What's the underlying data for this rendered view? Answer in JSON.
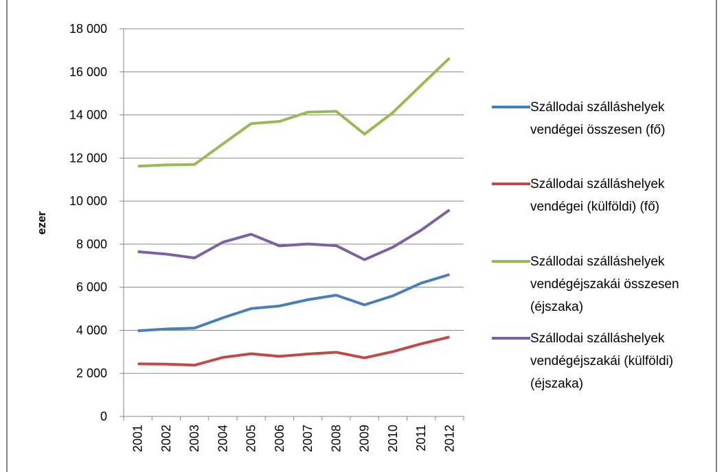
{
  "chart_data": {
    "type": "line",
    "y_label": "ezer",
    "categories": [
      "2001",
      "2002",
      "2003",
      "2004",
      "2005",
      "2006",
      "2007",
      "2008",
      "2009",
      "2010",
      "2011",
      "2012"
    ],
    "series": [
      {
        "name": "Szállodai szálláshelyek vendégei összesen (fő)",
        "color": "#4a7ebb",
        "values": [
          3980,
          4060,
          4100,
          4580,
          5010,
          5130,
          5420,
          5630,
          5180,
          5600,
          6190,
          6590
        ]
      },
      {
        "name": "Szállodai szálláshelyek vendégei (külföldi) (fő)",
        "color": "#be4b48",
        "values": [
          2440,
          2430,
          2380,
          2740,
          2910,
          2790,
          2900,
          2980,
          2720,
          3010,
          3370,
          3690
        ]
      },
      {
        "name": "Szállodai szálláshelyek vendégéjszakái összesen (éjszaka)",
        "color": "#98b954",
        "values": [
          11620,
          11680,
          11700,
          12650,
          13600,
          13700,
          14130,
          14170,
          13110,
          14110,
          15380,
          16640
        ]
      },
      {
        "name": "Szállodai szálláshelyek vendégéjszakái (külföldi) (éjszaka)",
        "color": "#7d60a0",
        "values": [
          7650,
          7540,
          7360,
          8090,
          8460,
          7920,
          8010,
          7930,
          7280,
          7860,
          8650,
          9590
        ]
      }
    ],
    "ylim": [
      0,
      18000
    ],
    "yticks": [
      0,
      {
        "value": 2000,
        "label": "2 000"
      },
      {
        "value": 4000,
        "label": "4 000"
      },
      {
        "value": 6000,
        "label": "6 000"
      },
      {
        "value": 8000,
        "label": "8 000"
      },
      {
        "value": 10000,
        "label": "10 000"
      },
      {
        "value": 12000,
        "label": "12 000"
      },
      {
        "value": 14000,
        "label": "14 000"
      },
      {
        "value": 16000,
        "label": "16 000"
      },
      {
        "value": 18000,
        "label": "18 000"
      }
    ],
    "grid": true,
    "legend": "right"
  }
}
